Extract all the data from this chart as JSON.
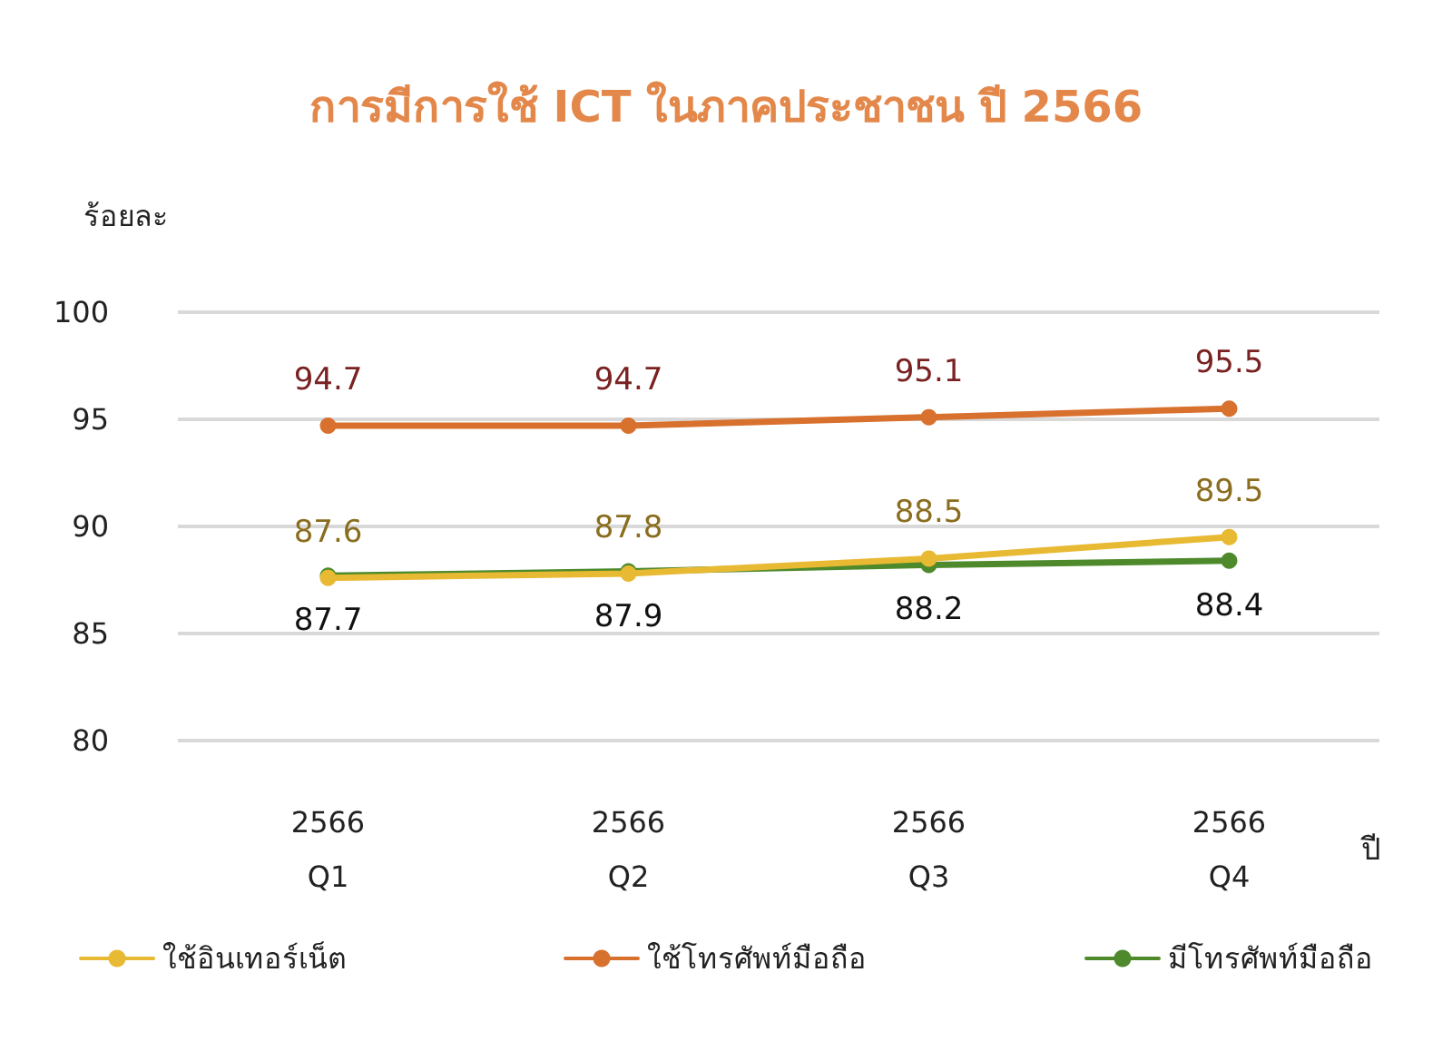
{
  "chart_data": {
    "type": "line",
    "title": "การมีการใช้ ICT ในภาคประชาชน ปี 2566",
    "ylabel": "ร้อยละ",
    "xlabel": "ปี",
    "categories": [
      "2566\nQ1",
      "2566\nQ2",
      "2566\nQ3",
      "2566\nQ4"
    ],
    "series": [
      {
        "name": "ใช้อินเทอร์เน็ต",
        "color": "#e8b932",
        "values": [
          87.6,
          87.8,
          88.5,
          89.5
        ]
      },
      {
        "name": "ใช้โทรศัพท์มือถือ",
        "color": "#d8702e",
        "values": [
          94.7,
          94.7,
          95.1,
          95.5
        ]
      },
      {
        "name": "มีโทรศัพท์มือถือ",
        "color": "#4e8a2c",
        "values": [
          87.7,
          87.9,
          88.2,
          88.4
        ]
      }
    ],
    "ylim": [
      80,
      100
    ],
    "yticks": [
      80,
      85,
      90,
      95,
      100
    ],
    "grid": "y",
    "legend": "bottom",
    "marker": "circle",
    "line_style": "solid",
    "data_labels": true
  }
}
